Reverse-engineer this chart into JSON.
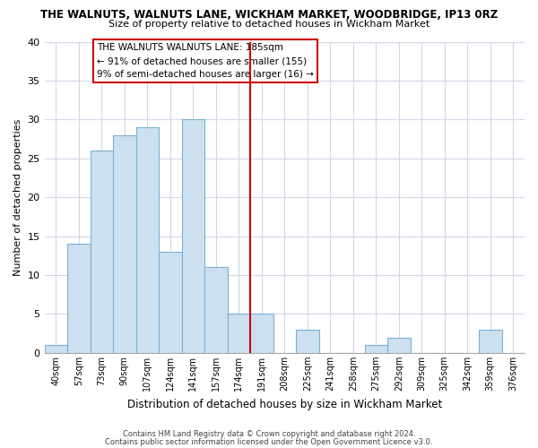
{
  "title": "THE WALNUTS, WALNUTS LANE, WICKHAM MARKET, WOODBRIDGE, IP13 0RZ",
  "subtitle": "Size of property relative to detached houses in Wickham Market",
  "xlabel": "Distribution of detached houses by size in Wickham Market",
  "ylabel": "Number of detached properties",
  "bar_labels": [
    "40sqm",
    "57sqm",
    "73sqm",
    "90sqm",
    "107sqm",
    "124sqm",
    "141sqm",
    "157sqm",
    "174sqm",
    "191sqm",
    "208sqm",
    "225sqm",
    "241sqm",
    "258sqm",
    "275sqm",
    "292sqm",
    "309sqm",
    "325sqm",
    "342sqm",
    "359sqm",
    "376sqm"
  ],
  "bar_values": [
    1,
    14,
    26,
    28,
    29,
    13,
    30,
    11,
    5,
    5,
    0,
    3,
    0,
    0,
    1,
    2,
    0,
    0,
    0,
    3,
    0
  ],
  "bar_color": "#cce0f0",
  "bar_edge_color": "#7ab0d4",
  "vline_color": "#cc0000",
  "ylim": [
    0,
    40
  ],
  "yticks": [
    0,
    5,
    10,
    15,
    20,
    25,
    30,
    35,
    40
  ],
  "annotation_title": "THE WALNUTS WALNUTS LANE: 185sqm",
  "annotation_line1": "← 91% of detached houses are smaller (155)",
  "annotation_line2": "9% of semi-detached houses are larger (16) →",
  "annotation_box_edgecolor": "#cc0000",
  "footer1": "Contains HM Land Registry data © Crown copyright and database right 2024.",
  "footer2": "Contains public sector information licensed under the Open Government Licence v3.0.",
  "background_color": "#ffffff",
  "grid_color": "#d0d8e8"
}
